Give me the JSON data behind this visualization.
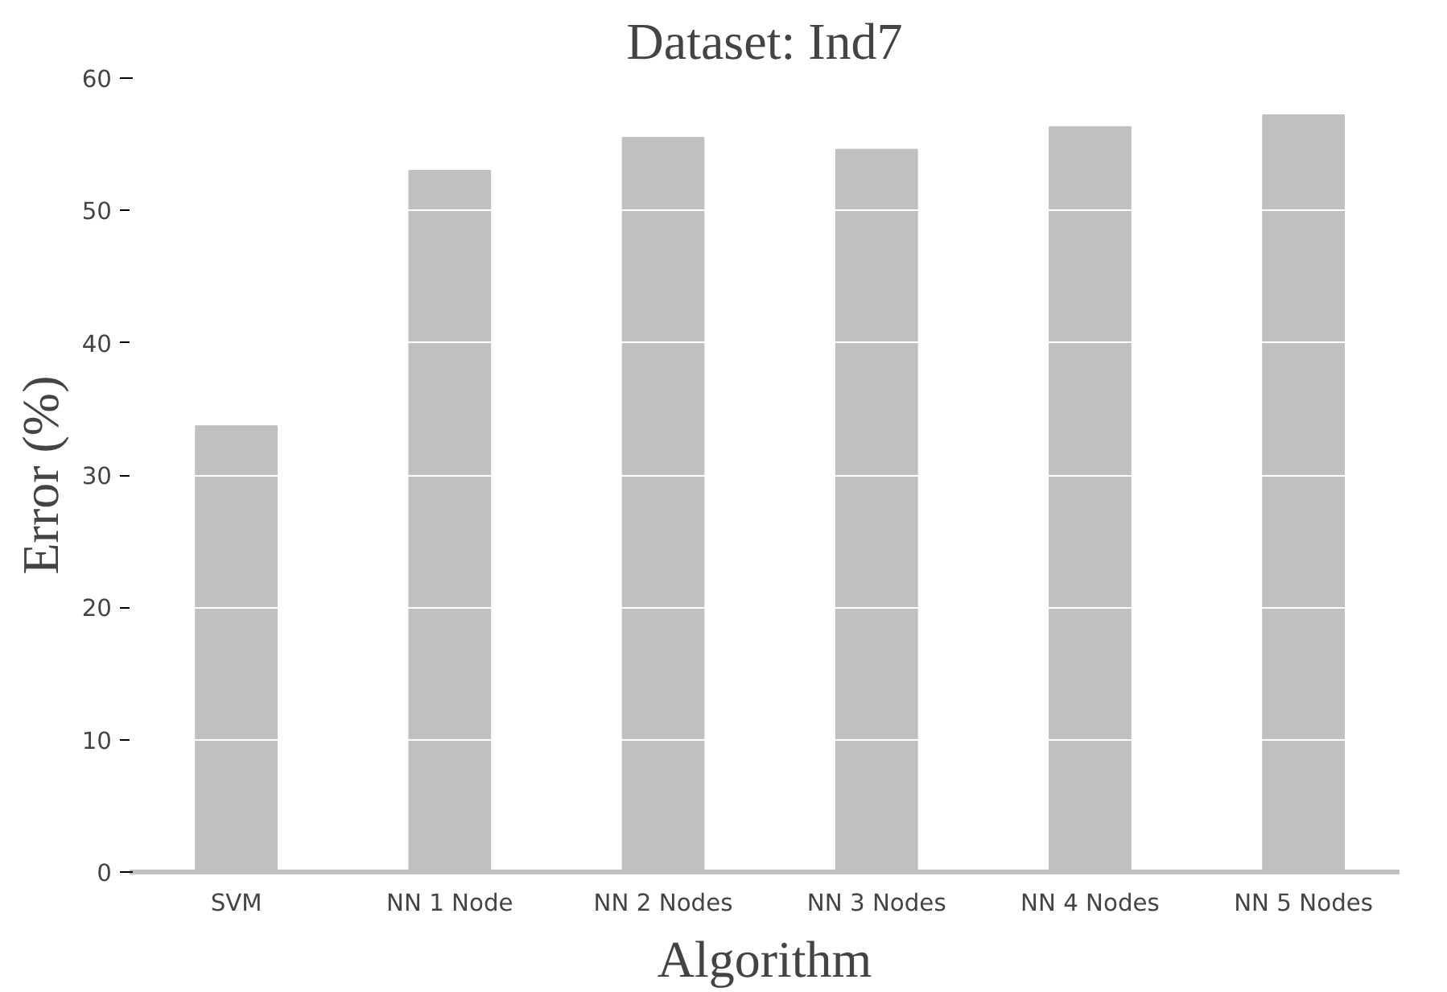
{
  "chart_data": {
    "type": "bar",
    "title": "Dataset: Ind7",
    "xlabel": "Algorithm",
    "ylabel": "Error (%)",
    "categories": [
      "SVM",
      "NN 1 Node",
      "NN 2 Nodes",
      "NN 3 Nodes",
      "NN 4 Nodes",
      "NN 5 Nodes"
    ],
    "values": [
      33.7,
      53.0,
      55.5,
      54.6,
      56.3,
      57.2
    ],
    "color": "#c0c0c0",
    "ylim": [
      0,
      60
    ],
    "yticks": [
      0,
      10,
      20,
      30,
      40,
      50,
      60
    ],
    "grid": "y"
  }
}
